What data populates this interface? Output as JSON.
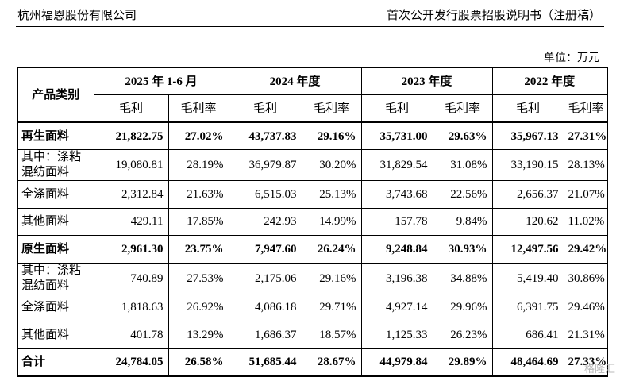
{
  "header": {
    "company": "杭州福恩股份有限公司",
    "doc_title": "首次公开发行股票招股说明书（注册稿）"
  },
  "unit_label": "单位：万元",
  "table": {
    "category_header": "产品类别",
    "periods": [
      "2025 年 1-6 月",
      "2024 年度",
      "2023 年度",
      "2022 年度"
    ],
    "sub_headers": [
      "毛利",
      "毛利率"
    ],
    "rows": [
      {
        "label": "再生面料",
        "bold": true,
        "values": [
          "21,822.75",
          "27.02%",
          "43,737.83",
          "29.16%",
          "35,731.00",
          "29.63%",
          "35,967.13",
          "27.31%"
        ]
      },
      {
        "label": "其中：涤粘混纺面料",
        "bold": false,
        "values": [
          "19,080.81",
          "28.19%",
          "36,979.87",
          "30.20%",
          "31,829.54",
          "31.08%",
          "33,190.15",
          "28.13%"
        ]
      },
      {
        "label": "全涤面料",
        "bold": false,
        "values": [
          "2,312.84",
          "21.63%",
          "6,515.03",
          "25.13%",
          "3,743.68",
          "22.56%",
          "2,656.37",
          "21.07%"
        ]
      },
      {
        "label": "其他面料",
        "bold": false,
        "values": [
          "429.11",
          "17.85%",
          "242.93",
          "14.99%",
          "157.78",
          "9.84%",
          "120.62",
          "11.02%"
        ]
      },
      {
        "label": "原生面料",
        "bold": true,
        "values": [
          "2,961.30",
          "23.75%",
          "7,947.60",
          "26.24%",
          "9,248.84",
          "30.93%",
          "12,497.56",
          "29.42%"
        ]
      },
      {
        "label": "其中：涤粘混纺面料",
        "bold": false,
        "values": [
          "740.89",
          "27.53%",
          "2,175.06",
          "29.16%",
          "3,196.38",
          "34.88%",
          "5,419.40",
          "30.86%"
        ]
      },
      {
        "label": "全涤面料",
        "bold": false,
        "values": [
          "1,818.63",
          "26.92%",
          "4,086.18",
          "29.71%",
          "4,927.14",
          "29.96%",
          "6,391.75",
          "29.46%"
        ]
      },
      {
        "label": "其他面料",
        "bold": false,
        "values": [
          "401.78",
          "13.29%",
          "1,686.37",
          "18.57%",
          "1,125.33",
          "26.23%",
          "686.41",
          "21.31%"
        ]
      },
      {
        "label": "合计",
        "bold": true,
        "values": [
          "24,784.05",
          "26.58%",
          "51,685.44",
          "28.67%",
          "44,979.84",
          "29.89%",
          "48,464.69",
          "27.33%"
        ]
      }
    ]
  },
  "watermark": "格隆汇"
}
